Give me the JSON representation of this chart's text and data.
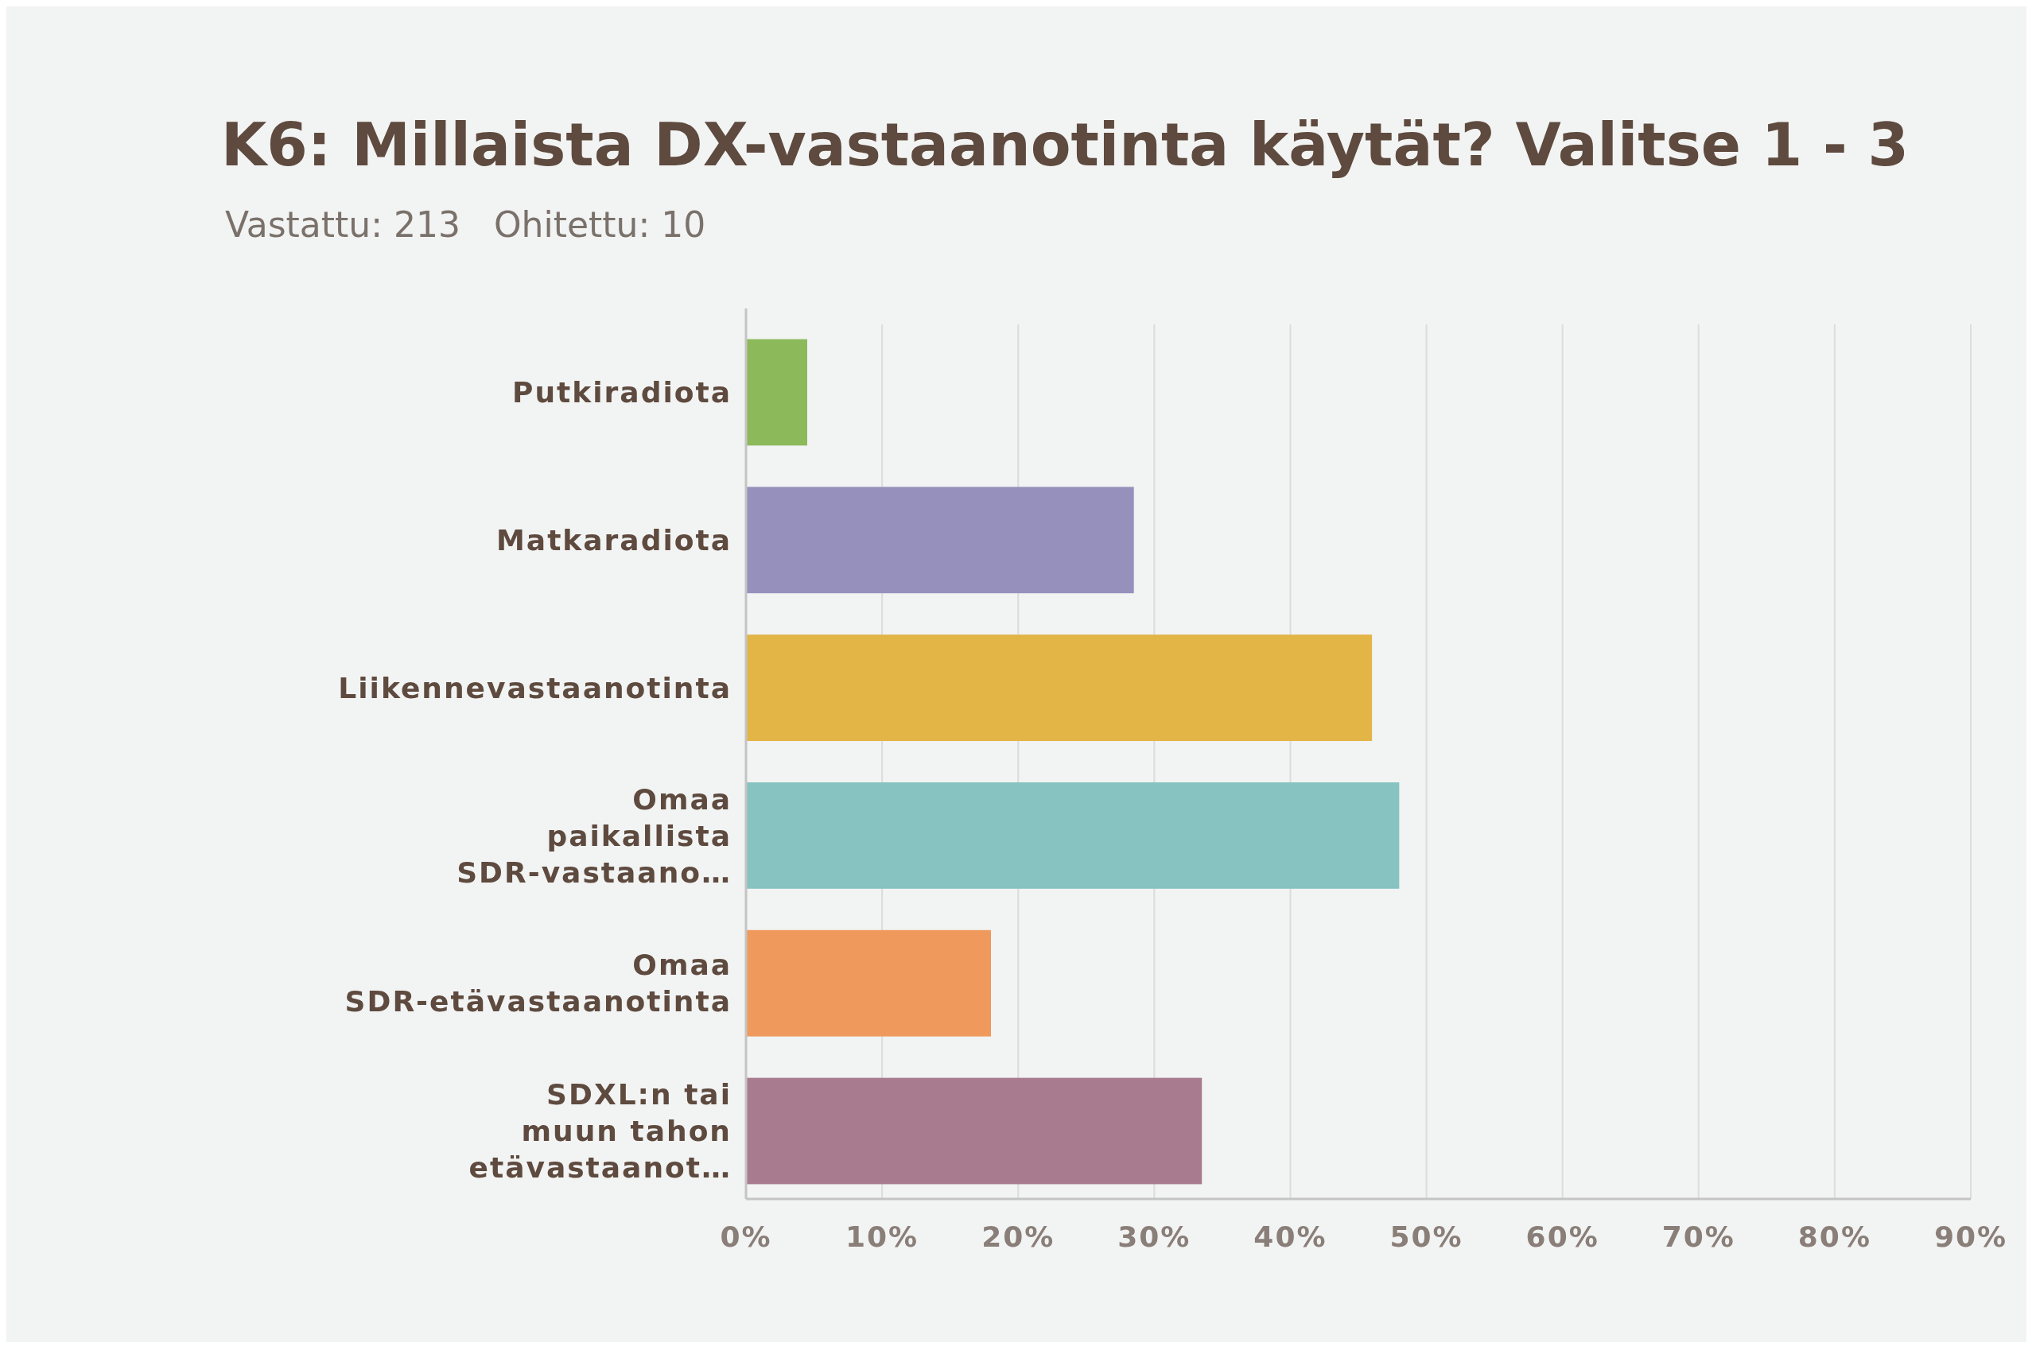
{
  "chart_data": {
    "type": "bar",
    "orientation": "horizontal",
    "title": "K6: Millaista DX-vastaanotinta käytät? Valitse 1 - 3",
    "subtitle": "Vastattu: 213   Ohitettu: 10",
    "categories": [
      "Putkiradiota",
      "Matkaradiota",
      "Liikennevastaanotinta",
      "Omaa paikallista SDR-vastaano…",
      "Omaa SDR-etävastaanotinta",
      "SDXL:n tai muun tahon etävastaanot…"
    ],
    "values": [
      4.5,
      28.5,
      46,
      48,
      18,
      33.5
    ],
    "colors": [
      "#8cb95a",
      "#9690bd",
      "#e3b446",
      "#86c3c1",
      "#ef9a5c",
      "#a87c8e"
    ],
    "xlim": [
      0,
      90
    ],
    "xticks": [
      {
        "value": 0,
        "label": "0%"
      },
      {
        "value": 10,
        "label": "10%"
      },
      {
        "value": 20,
        "label": "20%"
      },
      {
        "value": 30,
        "label": "30%"
      },
      {
        "value": 40,
        "label": "40%"
      },
      {
        "value": 50,
        "label": "50%"
      },
      {
        "value": 60,
        "label": "60%"
      },
      {
        "value": 70,
        "label": "70%"
      },
      {
        "value": 80,
        "label": "80%"
      },
      {
        "value": 90,
        "label": "90%"
      }
    ],
    "grid": "x"
  }
}
